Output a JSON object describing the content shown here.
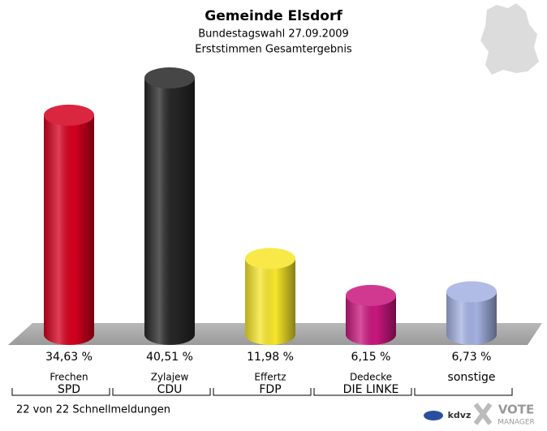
{
  "chart_data": {
    "type": "bar",
    "title": "Gemeinde Elsdorf",
    "subtitle": [
      "Bundestagswahl 27.09.2009",
      "Erststimmen Gesamtergebnis"
    ],
    "candidates": [
      "Frechen",
      "Zylajew",
      "Effertz",
      "Dedecke",
      null
    ],
    "categories": [
      "SPD",
      "CDU",
      "FDP",
      "DIE LINKE",
      "sonstige"
    ],
    "values": [
      34.63,
      40.51,
      11.98,
      6.15,
      6.73
    ],
    "value_labels": [
      "34,63 %",
      "40,51 %",
      "11,98 %",
      "6,15 %",
      "6,73 %"
    ],
    "colors": [
      "#d4001e",
      "#262626",
      "#f7e62a",
      "#c9177e",
      "#a3b1e2"
    ],
    "note": "22 von 22 Schnellmeldungen",
    "logos": [
      "kdvz",
      "VOTE",
      "MANAGER"
    ]
  }
}
